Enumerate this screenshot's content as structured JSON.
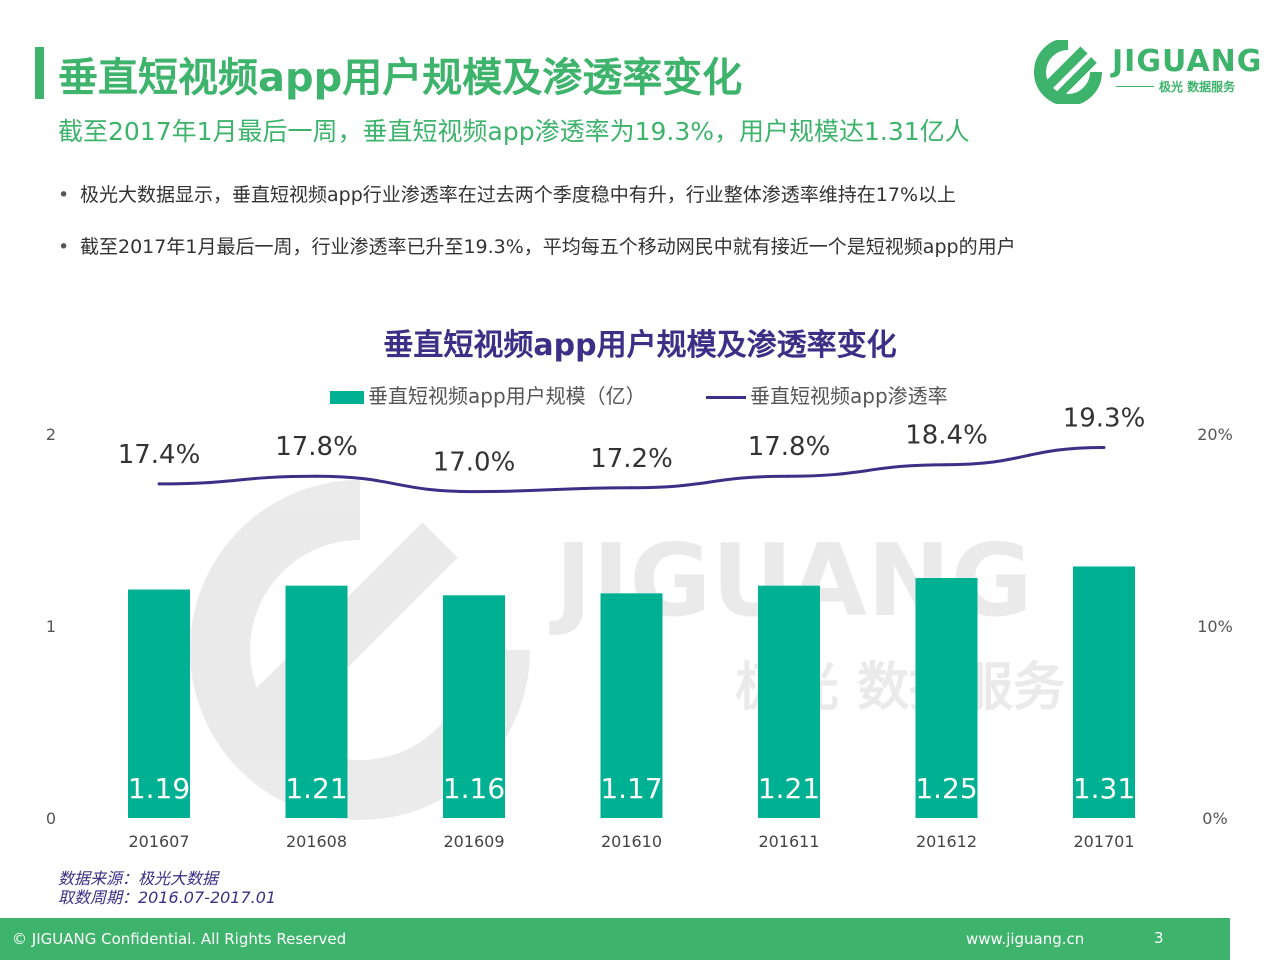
{
  "header": {
    "title": "垂直短视频app用户规模及渗透率变化",
    "subtitle": "截至2017年1月最后一周，垂直短视频app渗透率为19.3%，用户规模达1.31亿人"
  },
  "bullets": [
    "极光大数据显示，垂直短视频app行业渗透率在过去两个季度稳中有升，行业整体渗透率维持在17%以上",
    "截至2017年1月最后一周，行业渗透率已升至19.3%，平均每五个移动网民中就有接近一个是短视频app的用户"
  ],
  "logo": {
    "name": "JIGUANG",
    "sub": "极光 数据服务",
    "watermark": "JIGUANG",
    "watermark_sub": "极光 数据服务"
  },
  "colors": {
    "brand_green": "#3db36b",
    "bar": "#00b092",
    "line": "#3d2f86"
  },
  "chart_data": {
    "type": "bar",
    "title": "垂直短视频app用户规模及渗透率变化",
    "categories": [
      "201607",
      "201608",
      "201609",
      "201610",
      "201611",
      "201612",
      "201701"
    ],
    "series": [
      {
        "name": "垂直短视频app用户规模（亿）",
        "type": "bar",
        "axis": "left",
        "values": [
          1.19,
          1.21,
          1.16,
          1.17,
          1.21,
          1.25,
          1.31
        ],
        "labels": [
          "1.19",
          "1.21",
          "1.16",
          "1.17",
          "1.21",
          "1.25",
          "1.31"
        ]
      },
      {
        "name": "垂直短视频app渗透率",
        "type": "line",
        "axis": "right",
        "values": [
          17.4,
          17.8,
          17.0,
          17.2,
          17.8,
          18.4,
          19.3
        ],
        "labels": [
          "17.4%",
          "17.8%",
          "17.0%",
          "17.2%",
          "17.8%",
          "18.4%",
          "19.3%"
        ]
      }
    ],
    "y_left": {
      "range": [
        0,
        2
      ],
      "ticks": [
        "0",
        "1",
        "2"
      ]
    },
    "y_right": {
      "range": [
        0,
        20
      ],
      "ticks": [
        "0%",
        "10%",
        "20%"
      ]
    },
    "legend_position": "top",
    "grid": false
  },
  "source": {
    "line1": "数据来源：极光大数据",
    "line2": "取数周期：2016.07-2017.01"
  },
  "footer": {
    "copyright": "© JIGUANG Confidential. All Rights Reserved",
    "url": "www.jiguang.cn",
    "page": "3"
  }
}
